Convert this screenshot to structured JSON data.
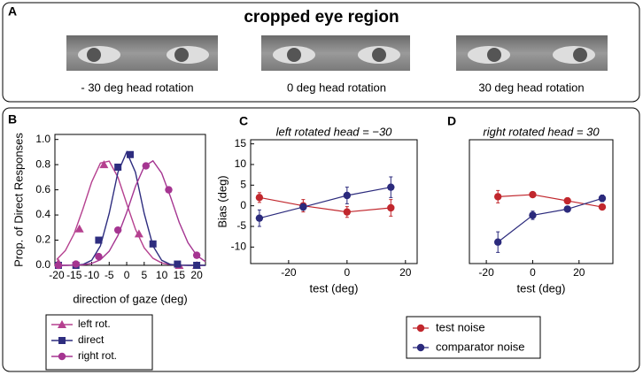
{
  "panel_a": {
    "label": "A",
    "title": "cropped eye region",
    "captions": [
      "- 30 deg head rotation",
      "0 deg head rotation",
      "30 deg head rotation"
    ]
  },
  "chart_data": [
    {
      "type": "scatter",
      "panel_label": "B",
      "ylabel": "Prop. of Direct Responses",
      "xlabel": "direction of gaze (deg)",
      "xlim": [
        -20.5,
        22.5
      ],
      "ylim": [
        0,
        1.04
      ],
      "xticks": [
        -20,
        -15,
        -10,
        -5,
        0,
        5,
        10,
        15,
        20
      ],
      "yticks": [
        {
          "value": 0,
          "label": "0.0"
        },
        0.2,
        0.4,
        0.6,
        0.8,
        {
          "value": 1,
          "label": "1.0"
        }
      ],
      "fit_x": [
        -20,
        -17.5,
        -15,
        -12.5,
        -10,
        -7.5,
        -5,
        -2.5,
        0,
        2.5,
        5,
        7.5,
        10,
        12.5,
        15,
        17.5,
        20,
        22.5
      ],
      "series": [
        {
          "name": "left rot.",
          "color": "#b5408f",
          "marker": "triangle",
          "x": [
            -19.5,
            -13.5,
            -6.5,
            3.5,
            15,
            20
          ],
          "values": [
            0.02,
            0.29,
            0.8,
            0.25,
            0.0,
            0.0
          ],
          "fit_values": [
            0.046,
            0.118,
            0.252,
            0.448,
            0.662,
            0.813,
            0.828,
            0.7,
            0.49,
            0.287,
            0.139,
            0.056,
            0.019,
            0.005,
            0.001,
            0,
            0,
            0
          ]
        },
        {
          "name": "direct",
          "color": "#2e2d7f",
          "marker": "square",
          "x": [
            -19.5,
            -14.5,
            -8,
            -2.5,
            1,
            7.5,
            14.5,
            20
          ],
          "values": [
            0,
            0,
            0.2,
            0.78,
            0.88,
            0.17,
            0.01,
            0
          ],
          "fit_values": [
            0,
            0,
            0.001,
            0.007,
            0.04,
            0.155,
            0.412,
            0.74,
            0.9,
            0.74,
            0.412,
            0.155,
            0.04,
            0.007,
            0.001,
            0,
            0,
            0
          ]
        },
        {
          "name": "right rot.",
          "color": "#a53591",
          "marker": "circle",
          "x": [
            -19.5,
            -14.5,
            -8,
            -2.5,
            5.5,
            12,
            20
          ],
          "values": [
            0,
            0.01,
            0.07,
            0.28,
            0.79,
            0.6,
            0.08
          ],
          "fit_values": [
            0,
            0,
            0.001,
            0.004,
            0.015,
            0.045,
            0.112,
            0.237,
            0.42,
            0.627,
            0.785,
            0.83,
            0.732,
            0.545,
            0.341,
            0.18,
            0.079,
            0.029
          ]
        }
      ]
    },
    {
      "type": "errorbar",
      "panel_label": "C",
      "title": "left rotated head = −30",
      "ylabel": "Bias (deg)",
      "xlabel": "test (deg)",
      "xlim": [
        -33,
        24
      ],
      "ylim": [
        -14,
        16
      ],
      "xticks": [
        -20,
        0,
        20
      ],
      "yticks": [
        -10,
        -5,
        0,
        5,
        10,
        15
      ],
      "series": [
        {
          "name": "test noise",
          "color": "#c1272d",
          "x": [
            -30,
            -15,
            0,
            15
          ],
          "values": [
            2,
            0,
            -1.5,
            -0.5
          ],
          "errors": [
            1.2,
            1.5,
            1.3,
            2
          ]
        },
        {
          "name": "comparator noise",
          "color": "#2b2a7c",
          "x": [
            -30,
            -15,
            0,
            15
          ],
          "values": [
            -3,
            -0.3,
            2.5,
            4.5
          ],
          "errors": [
            2,
            0.8,
            2,
            2.5
          ]
        }
      ]
    },
    {
      "type": "errorbar",
      "panel_label": "D",
      "title": "right rotated head = 30",
      "xlabel": "test (deg)",
      "xlim": [
        -27.3,
        34.6
      ],
      "ylim": [
        -14,
        16
      ],
      "xticks": [
        -20,
        0,
        20
      ],
      "series": [
        {
          "color": "#c1272d",
          "x": [
            -15,
            0,
            15,
            30
          ],
          "values": [
            2.2,
            2.7,
            1.2,
            -0.3
          ],
          "errors": [
            1.5,
            0.5,
            0.7,
            0.5
          ]
        },
        {
          "color": "#2b2a7c",
          "x": [
            -15,
            0,
            15,
            30
          ],
          "values": [
            -8.8,
            -2.3,
            -0.8,
            1.8
          ],
          "errors": [
            2.5,
            1,
            0.5,
            0.8
          ]
        }
      ]
    }
  ]
}
